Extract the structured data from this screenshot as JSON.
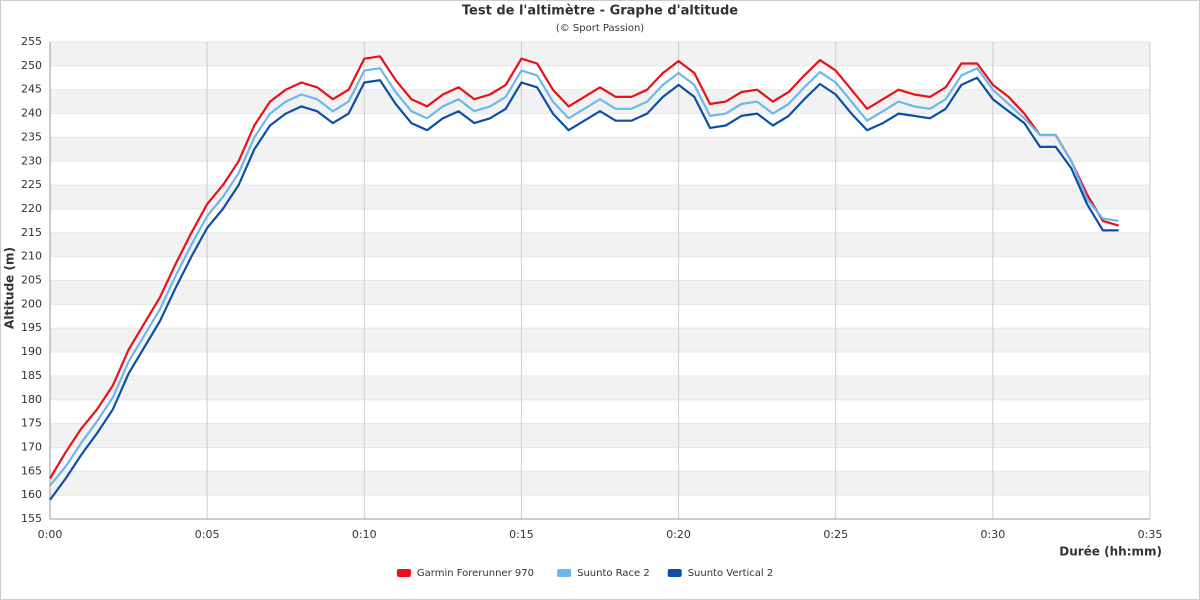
{
  "chart_data": {
    "type": "line",
    "title": "Test de l'altimètre - Graphe d'altitude",
    "subtitle": "(© Sport Passion)",
    "x_label": "Durée (hh:mm)",
    "y_label": "Altitude (m)",
    "x": [
      0,
      0.5,
      1,
      1.5,
      2,
      2.5,
      3,
      3.5,
      4,
      4.5,
      5,
      5.5,
      6,
      6.5,
      7,
      7.5,
      8,
      8.5,
      9,
      9.5,
      10,
      10.5,
      11,
      11.5,
      12,
      12.5,
      13,
      13.5,
      14,
      14.5,
      15,
      15.5,
      16,
      16.5,
      17,
      17.5,
      18,
      18.5,
      19,
      19.5,
      20,
      20.5,
      21,
      21.5,
      22,
      22.5,
      23,
      23.5,
      24,
      24.5,
      25,
      25.5,
      26,
      26.5,
      27,
      27.5,
      28,
      28.5,
      29,
      29.5,
      30,
      30.5,
      31,
      31.5,
      32,
      32.5,
      33,
      33.5,
      34
    ],
    "series": [
      {
        "name": "Garmin Forerunner 970",
        "color": "#e8101a",
        "values": [
          163.5,
          169,
          174,
          178,
          183,
          190.5,
          196,
          201.5,
          208.5,
          215,
          221,
          225,
          230,
          237.5,
          242.5,
          245,
          246.5,
          245.5,
          243,
          245,
          251.5,
          252,
          247,
          243,
          241.5,
          244,
          245.5,
          243,
          244,
          246,
          251.5,
          250.5,
          245,
          241.5,
          243.5,
          245.5,
          243.5,
          243.5,
          245,
          248.5,
          251,
          248.5,
          242,
          242.5,
          244.5,
          245,
          242.5,
          244.5,
          248,
          251.2,
          249,
          245,
          241,
          243,
          245,
          244,
          243.5,
          245.5,
          250.5,
          250.5,
          246,
          243.5,
          240,
          235.5,
          235.5,
          230,
          223,
          217.5,
          216.5
        ]
      },
      {
        "name": "Suunto Race 2",
        "color": "#6cb8ec",
        "values": [
          162,
          166,
          171,
          175.5,
          180.5,
          188,
          193.5,
          199,
          206,
          212.5,
          218.5,
          222.5,
          227.5,
          235,
          240,
          242.5,
          244,
          243,
          240.5,
          242.5,
          249,
          249.5,
          244.5,
          240.5,
          239,
          241.5,
          243,
          240.5,
          241.5,
          243.5,
          249,
          248,
          242.5,
          239,
          241,
          243,
          241,
          241,
          242.5,
          246,
          248.5,
          246,
          239.5,
          240,
          242,
          242.5,
          240,
          242,
          245.5,
          248.7,
          246.5,
          242.5,
          238.5,
          240.5,
          242.5,
          241.5,
          241,
          243,
          248,
          249.5,
          245,
          242,
          239,
          235.5,
          235.5,
          230,
          222,
          218,
          217.5
        ]
      },
      {
        "name": "Suunto Vertical 2",
        "color": "#0d4fa8",
        "values": [
          159,
          163.5,
          168.5,
          173,
          178,
          185.5,
          191,
          196.5,
          203.5,
          210,
          216,
          220,
          225,
          232.5,
          237.5,
          240,
          241.5,
          240.5,
          238,
          240,
          246.5,
          247,
          242,
          238,
          236.5,
          239,
          240.5,
          238,
          239,
          241,
          246.5,
          245.5,
          240,
          236.5,
          238.5,
          240.5,
          238.5,
          238.5,
          240,
          243.5,
          246,
          243.5,
          237,
          237.5,
          239.5,
          240,
          237.5,
          239.5,
          243,
          246.2,
          244,
          240,
          236.5,
          238,
          240,
          239.5,
          239,
          241,
          246,
          247.5,
          243,
          240.5,
          238,
          233,
          233,
          228.5,
          221,
          215.5,
          215.5
        ]
      }
    ],
    "xlim": [
      0,
      35
    ],
    "xticks": [
      {
        "value": 0,
        "label": "0:00"
      },
      {
        "value": 5,
        "label": "0:05"
      },
      {
        "value": 10,
        "label": "0:10"
      },
      {
        "value": 15,
        "label": "0:15"
      },
      {
        "value": 20,
        "label": "0:20"
      },
      {
        "value": 25,
        "label": "0:25"
      },
      {
        "value": 30,
        "label": "0:30"
      },
      {
        "value": 35,
        "label": "0:35"
      }
    ],
    "ylim": [
      155,
      255
    ],
    "yticks": [
      155,
      160,
      165,
      170,
      175,
      180,
      185,
      190,
      195,
      200,
      205,
      210,
      215,
      220,
      225,
      230,
      235,
      240,
      245,
      250,
      255
    ],
    "grid": true,
    "legend_position": "bottom"
  }
}
